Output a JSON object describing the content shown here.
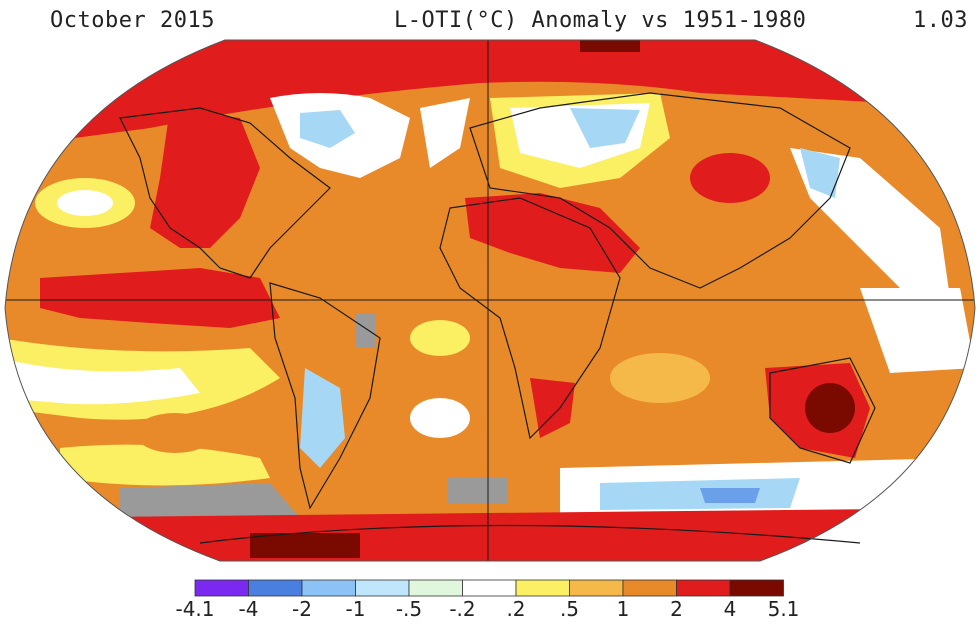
{
  "header": {
    "left": "October 2015",
    "center": "L-OTI(°C) Anomaly vs 1951-1980",
    "right": "1.03"
  },
  "map": {
    "projection": "Robinson",
    "palette": {
      "dark_red": "#7a0a00",
      "red": "#e01c1c",
      "orange": "#e98a2a",
      "light_orange": "#f5b94a",
      "yellow": "#fbef63",
      "white": "#ffffff",
      "pale_green": "#dff5dc",
      "light_blue": "#a6d8f5",
      "blue": "#6aa0ea",
      "violet": "#7a29f0",
      "missing": "#9a9a9a",
      "coast": "#1a1a1a"
    }
  },
  "legend": {
    "labels": [
      "-4.1",
      "-4",
      "-2",
      "-1",
      "-.5",
      "-.2",
      ".2",
      ".5",
      "1",
      "2",
      "4",
      "5.1"
    ],
    "colors": [
      "#7a29f0",
      "#4a7fe0",
      "#8cc2f5",
      "#bfe6fa",
      "#e1f7dd",
      "#ffffff",
      "#fbef63",
      "#f5b94a",
      "#e98a2a",
      "#e01c1c",
      "#7a0a00"
    ]
  }
}
